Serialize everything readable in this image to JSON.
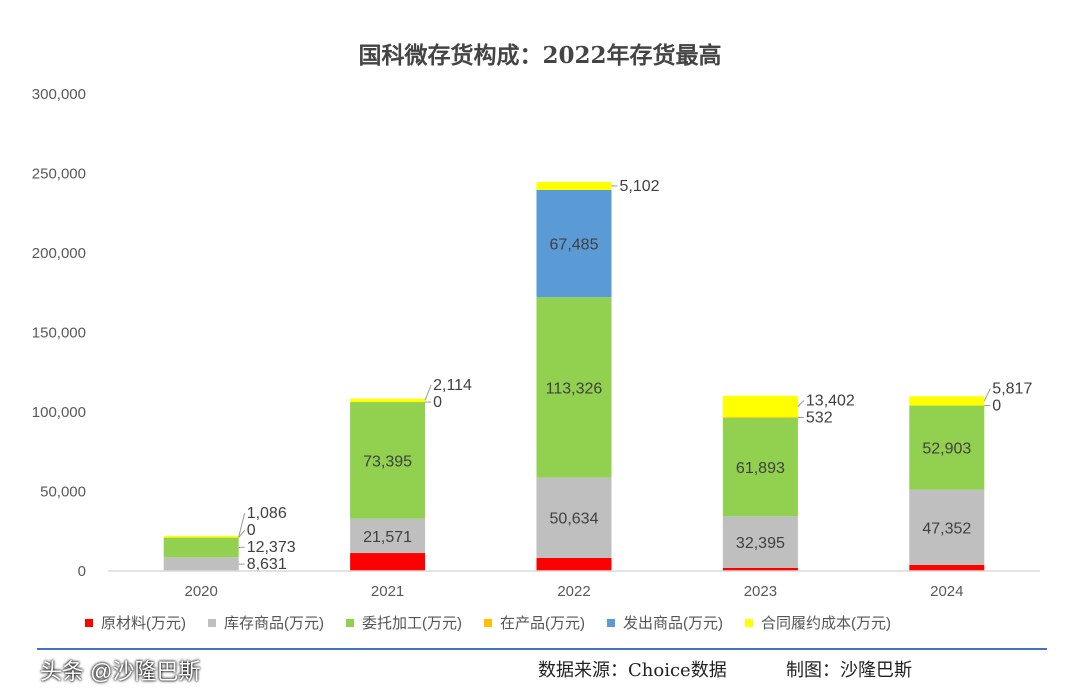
{
  "chart_data": {
    "type": "bar",
    "stacked": true,
    "title": "国科微存货构成：2022年存货最高",
    "categories": [
      "2020",
      "2021",
      "2022",
      "2023",
      "2024"
    ],
    "ylim": [
      0,
      300000
    ],
    "yticks": [
      0,
      50000,
      100000,
      150000,
      200000,
      250000,
      300000
    ],
    "ytick_labels": [
      "0",
      "50,000",
      "100,000",
      "150,000",
      "200,000",
      "250,000",
      "300,000"
    ],
    "grid": false,
    "legend": "bottom",
    "series": [
      {
        "name": "原材料(万元)",
        "color": "#ff0000",
        "values": [
          0,
          11300,
          8200,
          2000,
          3800
        ],
        "labeled": false
      },
      {
        "name": "库存商品(万元)",
        "color": "#bfbfbf",
        "values": [
          8631,
          21571,
          50634,
          32395,
          47352
        ],
        "labeled": true
      },
      {
        "name": "委托加工(万元)",
        "color": "#92d050",
        "values": [
          12373,
          73395,
          113326,
          61893,
          52903
        ],
        "labeled": true
      },
      {
        "name": "在产品(万元)",
        "color": "#ffc000",
        "values": [
          0,
          0,
          0,
          532,
          0
        ],
        "labeled": true
      },
      {
        "name": "发出商品(万元)",
        "color": "#5b9bd5",
        "values": [
          0,
          0,
          67485,
          0,
          0
        ],
        "labeled": true
      },
      {
        "name": "合同履约成本(万元)",
        "color": "#ffff00",
        "values": [
          1086,
          2114,
          5102,
          13402,
          5817
        ],
        "labeled": true
      }
    ]
  },
  "footer": {
    "source": "数据来源：Choice数据",
    "credit": "制图：沙隆巴斯",
    "watermark": "头条 @沙隆巴斯"
  }
}
